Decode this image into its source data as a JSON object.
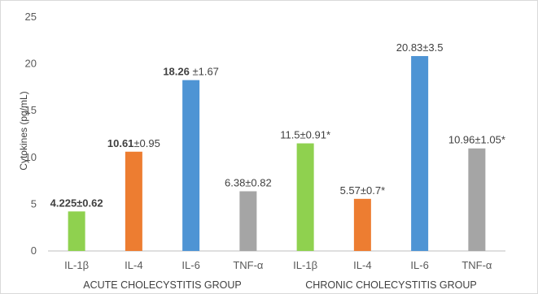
{
  "chart_data": {
    "type": "bar",
    "ylabel": "Cytokines (pg/mL)",
    "ylim": [
      0,
      25
    ],
    "yticks": [
      0,
      5,
      10,
      15,
      20,
      25
    ],
    "grid": false,
    "groups": [
      {
        "name": "ACUTE CHOLECYSTITIS GROUP",
        "bars": [
          {
            "category": "IL-1β",
            "value": 4.225,
            "label_bold": "4.225±0.62",
            "label": "",
            "color": "#8fd14f"
          },
          {
            "category": "IL-4",
            "value": 10.61,
            "label_bold": "10.61",
            "label": "±0.95",
            "color": "#ed7d31"
          },
          {
            "category": "IL-6",
            "value": 18.26,
            "label_bold": "18.26",
            "label": " ±1.67",
            "color": "#4e94d4"
          },
          {
            "category": "TNF-α",
            "value": 6.38,
            "label_bold": "",
            "label": "6.38±0.82",
            "color": "#a5a5a5"
          }
        ]
      },
      {
        "name": "CHRONIC CHOLECYSTITIS GROUP",
        "bars": [
          {
            "category": "IL-1β",
            "value": 11.5,
            "label_bold": "",
            "label": "11.5±0.91*",
            "color": "#8fd14f"
          },
          {
            "category": "IL-4",
            "value": 5.57,
            "label_bold": "",
            "label": "5.57±0.7*",
            "color": "#ed7d31"
          },
          {
            "category": "IL-6",
            "value": 20.83,
            "label_bold": "",
            "label": "20.83±3.5",
            "color": "#4e94d4"
          },
          {
            "category": "TNF-α",
            "value": 10.96,
            "label_bold": "",
            "label": "10.96±1.05*",
            "color": "#a5a5a5"
          }
        ]
      }
    ]
  }
}
